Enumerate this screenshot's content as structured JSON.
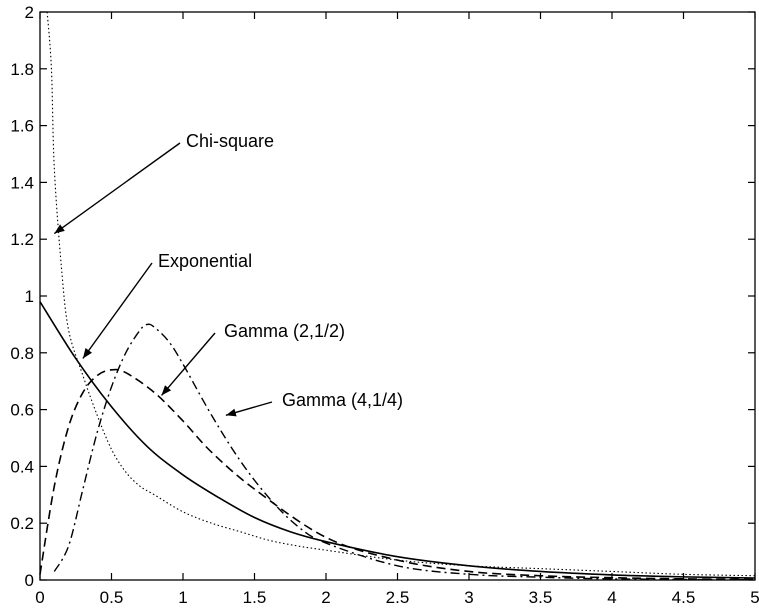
{
  "chart_data": {
    "type": "line",
    "title": "",
    "xlabel": "",
    "ylabel": "",
    "xlim": [
      0,
      5
    ],
    "ylim": [
      0,
      2
    ],
    "grid": false,
    "x_ticks": [
      "0",
      "0.5",
      "1",
      "1.5",
      "2",
      "2.5",
      "3",
      "3.5",
      "4",
      "4.5",
      "5"
    ],
    "y_ticks": [
      "0",
      "0.2",
      "0.4",
      "0.6",
      "0.8",
      "1",
      "1.2",
      "1.4",
      "1.6",
      "1.8",
      "2"
    ],
    "series": [
      {
        "name": "Chi-square",
        "style": "dotted",
        "x": [
          0.05,
          0.08,
          0.1,
          0.15,
          0.2,
          0.3,
          0.4,
          0.5,
          0.6,
          0.7,
          0.8,
          1.0,
          1.2,
          1.4,
          1.6,
          1.8,
          2.0,
          2.5,
          3.0,
          3.5,
          4.0,
          4.5,
          5.0
        ],
        "y": [
          2.0,
          1.8,
          1.45,
          1.1,
          0.88,
          0.72,
          0.58,
          0.46,
          0.38,
          0.33,
          0.3,
          0.24,
          0.2,
          0.17,
          0.14,
          0.12,
          0.105,
          0.07,
          0.05,
          0.04,
          0.03,
          0.02,
          0.015
        ]
      },
      {
        "name": "Exponential",
        "style": "solid",
        "x": [
          0,
          0.25,
          0.5,
          0.75,
          1.0,
          1.25,
          1.5,
          1.75,
          2.0,
          2.5,
          3.0,
          3.5,
          4.0,
          4.5,
          5.0
        ],
        "y": [
          0.98,
          0.78,
          0.61,
          0.47,
          0.37,
          0.29,
          0.22,
          0.17,
          0.135,
          0.082,
          0.05,
          0.03,
          0.018,
          0.011,
          0.007
        ]
      },
      {
        "name": "Gamma (2,1/2)",
        "style": "dashed",
        "x": [
          0,
          0.1,
          0.2,
          0.3,
          0.4,
          0.5,
          0.6,
          0.8,
          1.0,
          1.2,
          1.5,
          2.0,
          2.5,
          3.0,
          3.5,
          4.0,
          4.5,
          5.0
        ],
        "y": [
          0.02,
          0.33,
          0.54,
          0.66,
          0.72,
          0.74,
          0.73,
          0.66,
          0.56,
          0.45,
          0.32,
          0.15,
          0.07,
          0.03,
          0.015,
          0.008,
          0.004,
          0.002
        ]
      },
      {
        "name": "Gamma (4,1/4)",
        "style": "dashdot",
        "x": [
          0.1,
          0.2,
          0.3,
          0.4,
          0.5,
          0.6,
          0.7,
          0.75,
          0.8,
          0.9,
          1.0,
          1.2,
          1.4,
          1.6,
          1.8,
          2.0,
          2.5,
          3.0,
          3.5,
          4.0,
          5.0
        ],
        "y": [
          0.03,
          0.12,
          0.32,
          0.52,
          0.68,
          0.8,
          0.88,
          0.9,
          0.89,
          0.84,
          0.76,
          0.58,
          0.42,
          0.29,
          0.19,
          0.13,
          0.05,
          0.02,
          0.01,
          0.004,
          0.001
        ]
      }
    ],
    "annotations": [
      {
        "text": "Chi-square",
        "points_to": [
          0.1,
          1.22
        ]
      },
      {
        "text": "Exponential",
        "points_to": [
          0.3,
          0.78
        ]
      },
      {
        "text": "Gamma (2,1/2)",
        "points_to": [
          0.85,
          0.65
        ]
      },
      {
        "text": "Gamma (4,1/4)",
        "points_to": [
          1.3,
          0.58
        ]
      }
    ]
  }
}
